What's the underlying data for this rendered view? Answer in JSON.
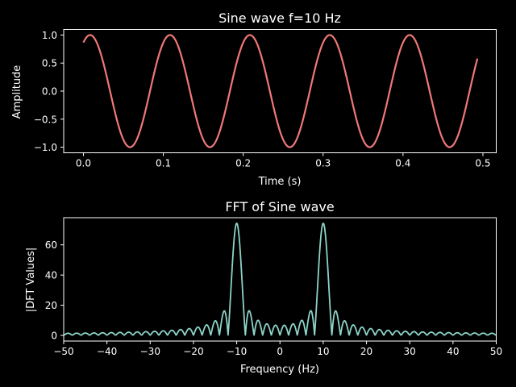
{
  "chart_data": [
    {
      "type": "line",
      "title": "Sine wave f=10 Hz",
      "xlabel": "Time (s)",
      "ylabel": "Amplitude",
      "xlim": [
        -0.0247,
        0.5167
      ],
      "ylim": [
        -1.1,
        1.1
      ],
      "xticks": [
        0.0,
        0.1,
        0.2,
        0.3,
        0.4,
        0.5
      ],
      "xtick_labels": [
        "0.0",
        "0.1",
        "0.2",
        "0.3",
        "0.4",
        "0.5"
      ],
      "yticks": [
        -1.0,
        -0.5,
        0.0,
        0.5,
        1.0
      ],
      "ytick_labels": [
        "−1.0",
        "−0.5",
        "0.0",
        "0.5",
        "1.0"
      ],
      "series": [
        {
          "function": "sin(2*pi*10*t + 1.047)",
          "frequency_hz": 10,
          "amplitude": 1.0,
          "phase_rad": 1.047,
          "t_start": 0.0,
          "t_end": 0.4932,
          "color": "#f07878"
        }
      ],
      "grid": false
    },
    {
      "type": "line",
      "title": "FFT of Sine wave",
      "xlabel": "Frequency (Hz)",
      "ylabel": "|DFT Values|",
      "xlim": [
        -50,
        50
      ],
      "ylim": [
        -3.7,
        78.0
      ],
      "xticks": [
        -50,
        -40,
        -30,
        -20,
        -10,
        0,
        10,
        20,
        30,
        40,
        50
      ],
      "xtick_labels": [
        "−50",
        "−40",
        "−30",
        "−20",
        "−10",
        "0",
        "10",
        "20",
        "30",
        "40",
        "50"
      ],
      "yticks": [
        0,
        20,
        40,
        60
      ],
      "ytick_labels": [
        "0",
        "20",
        "40",
        "60"
      ],
      "series": [
        {
          "description": "magnitude spectrum of truncated 10 Hz sine",
          "peak_frequencies_hz": [
            -10,
            10
          ],
          "peak_value": 74.3,
          "main_lobe_null_offset_hz": 2.0,
          "sidelobe_spacing_hz": 2.0,
          "first_sidelobe_value": 16.0,
          "floor_value_near_edges": 1.0,
          "center_value": 5.5,
          "color": "#8dd3c7"
        }
      ],
      "grid": false
    }
  ],
  "colors": {
    "background": "#000000",
    "foreground": "#ffffff",
    "sine": "#f07878",
    "fft": "#8dd3c7"
  }
}
